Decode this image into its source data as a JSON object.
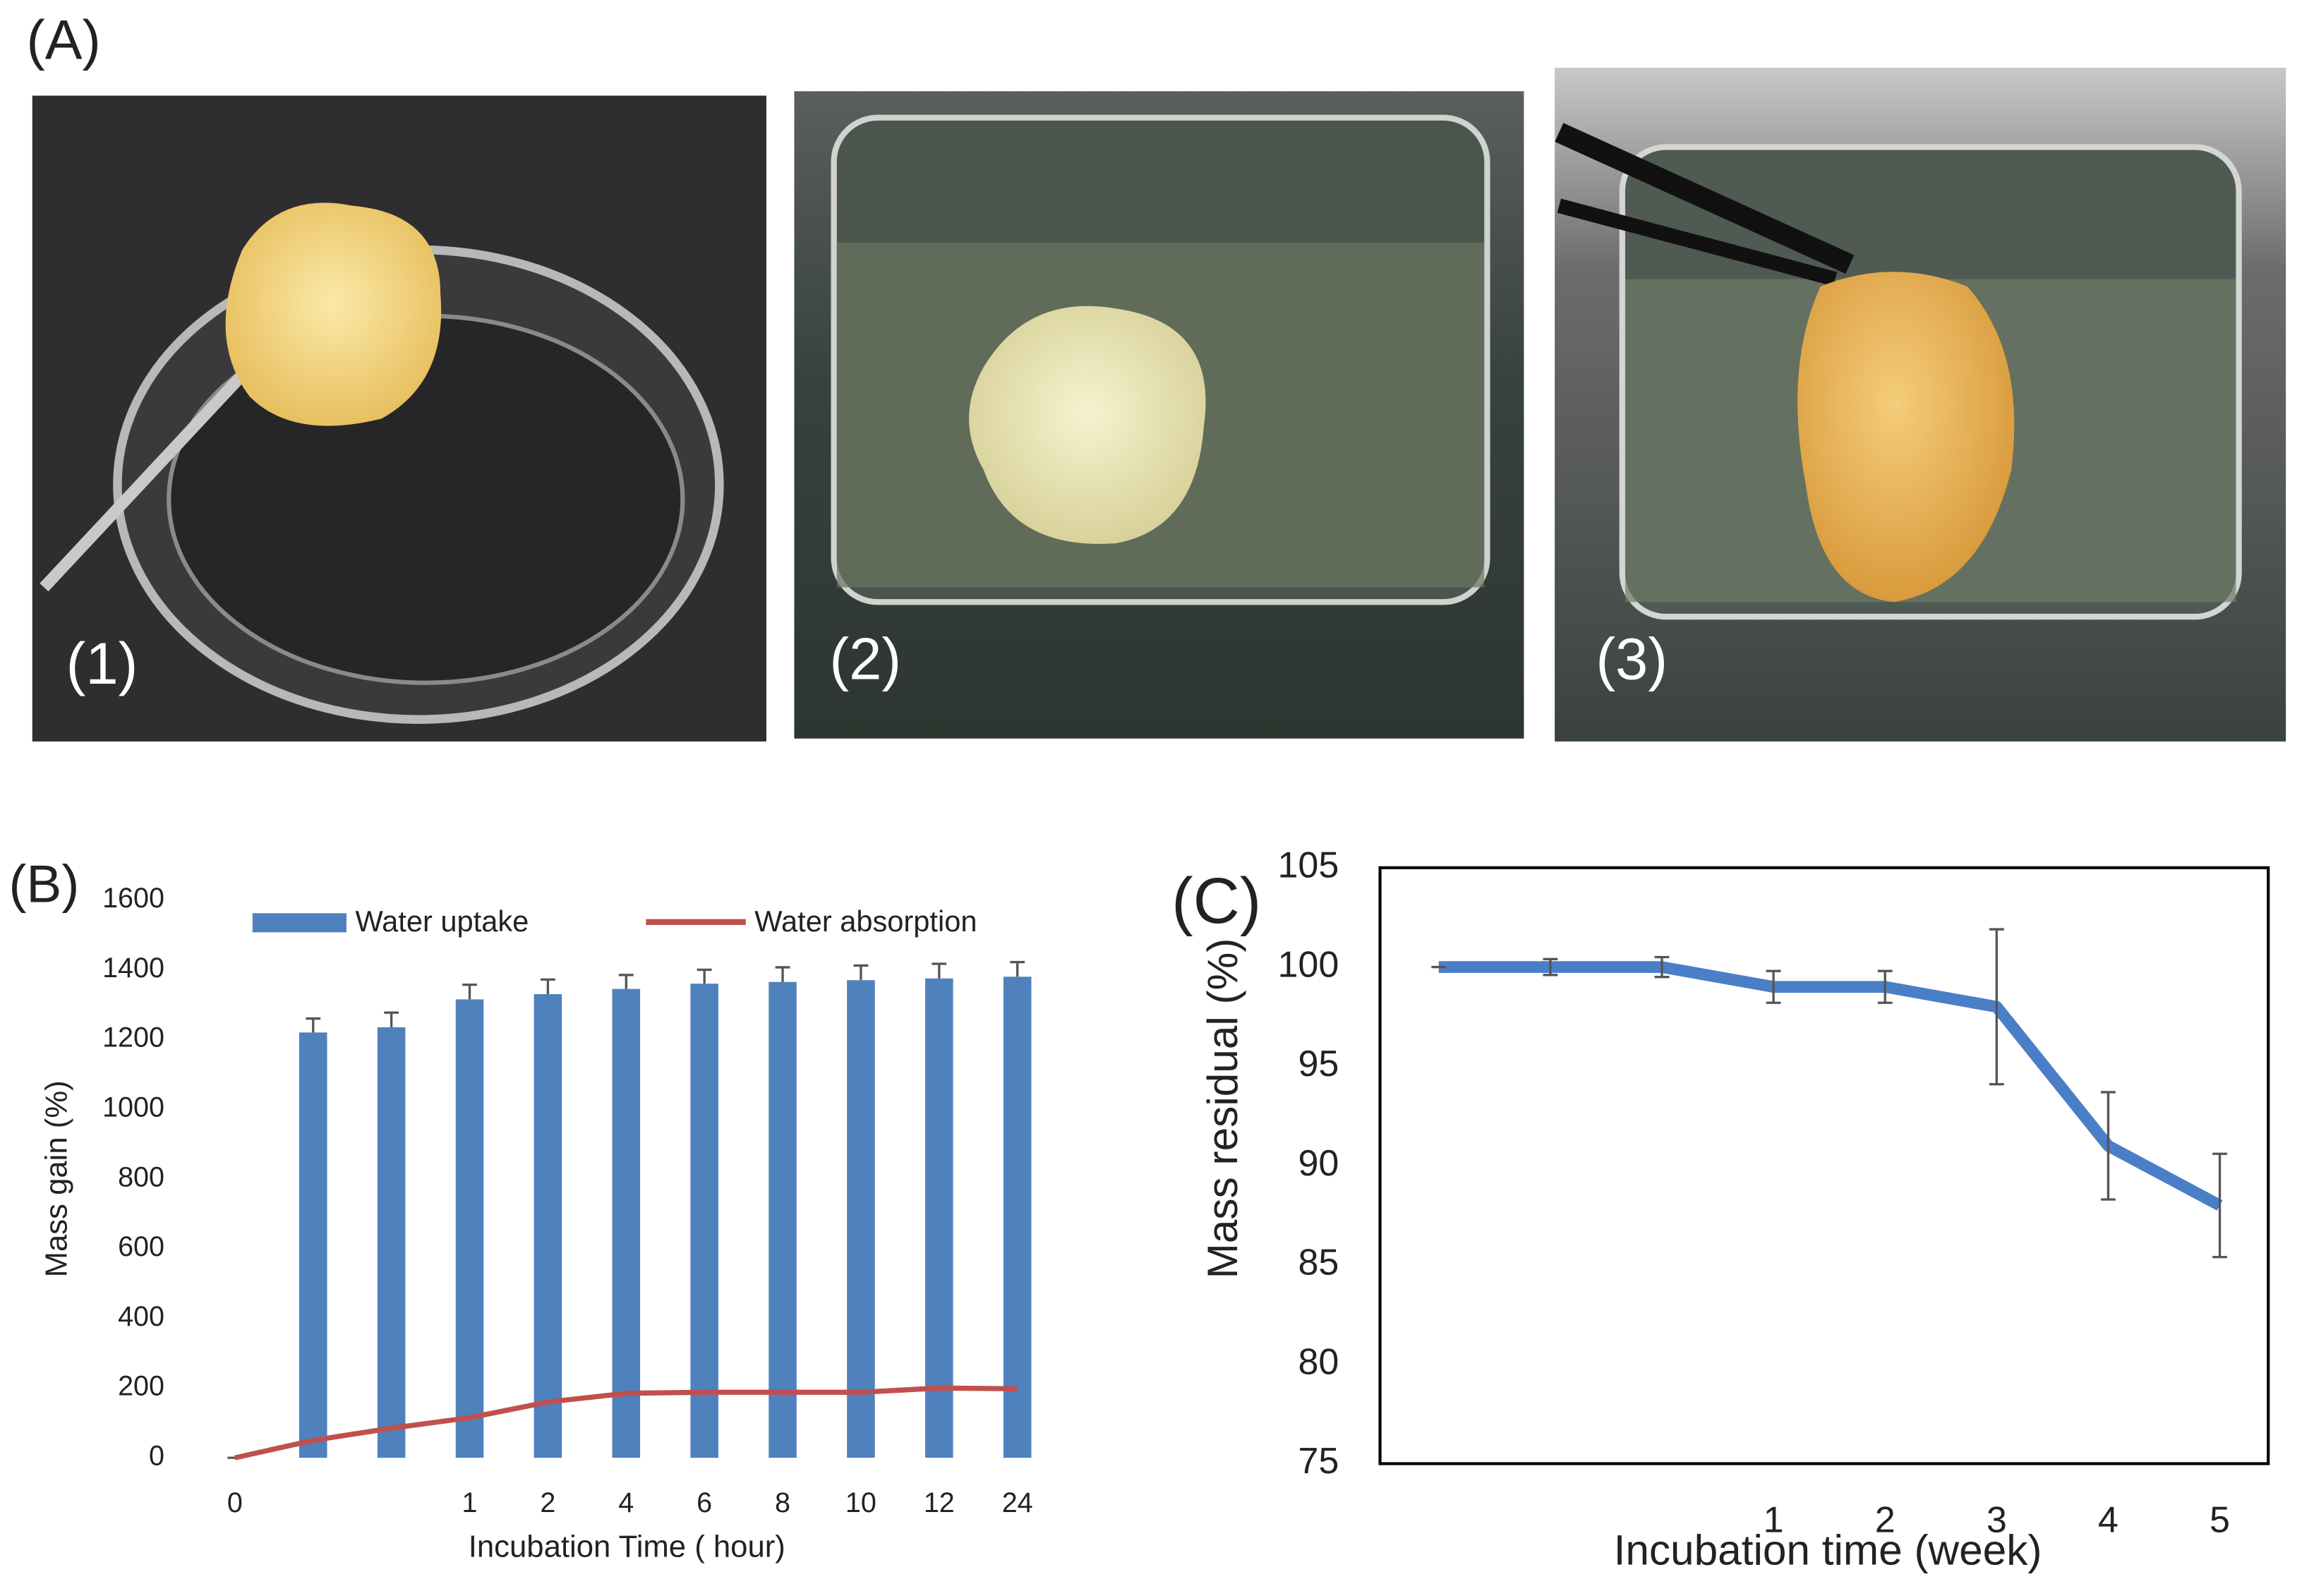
{
  "panels": {
    "a": "(A)",
    "b": "(B)",
    "c": "(C)"
  },
  "photo_labels": [
    "(1)",
    "(2)",
    "(3)"
  ],
  "chart_data": [
    {
      "type": "bar",
      "ylabel": "Mass gain (%)",
      "xlabel": "Incubation Time ( hour)",
      "categories": [
        "0",
        null,
        null,
        "1",
        "2",
        "4",
        "6",
        "8",
        "10",
        "12",
        "24"
      ],
      "series": [
        {
          "name": "Water uptake",
          "type": "bar",
          "color": "#4f81bd",
          "values": [
            0,
            1220,
            1235,
            1315,
            1330,
            1345,
            1360,
            1365,
            1370,
            1375,
            1380
          ],
          "errors": [
            0,
            40,
            42,
            42,
            42,
            40,
            40,
            42,
            42,
            42,
            42
          ]
        },
        {
          "name": "Water absorption",
          "type": "line",
          "color": "#c0504d",
          "values": [
            0,
            50,
            85,
            115,
            160,
            185,
            188,
            188,
            188,
            200,
            198
          ]
        }
      ],
      "ylim": [
        0,
        1600
      ],
      "yticks": [
        0,
        200,
        400,
        600,
        800,
        1000,
        1200,
        1400,
        1600
      ],
      "grid": false,
      "legend": "top"
    },
    {
      "type": "line",
      "ylabel": "Mass residual  (%)",
      "xlabel": "Incubation time (week)",
      "categories": [
        null,
        null,
        null,
        "1",
        "2",
        "3",
        "4",
        "5"
      ],
      "series": [
        {
          "color": "#4a7fc7",
          "values": [
            100,
            100,
            100,
            99,
            99,
            98,
            91,
            88
          ],
          "errors": [
            0,
            0.4,
            0.5,
            0.8,
            0.8,
            3.9,
            2.7,
            2.6
          ]
        }
      ],
      "ylim": [
        75,
        105
      ],
      "yticks": [
        75,
        80,
        85,
        90,
        95,
        100,
        105
      ],
      "grid": false
    }
  ]
}
